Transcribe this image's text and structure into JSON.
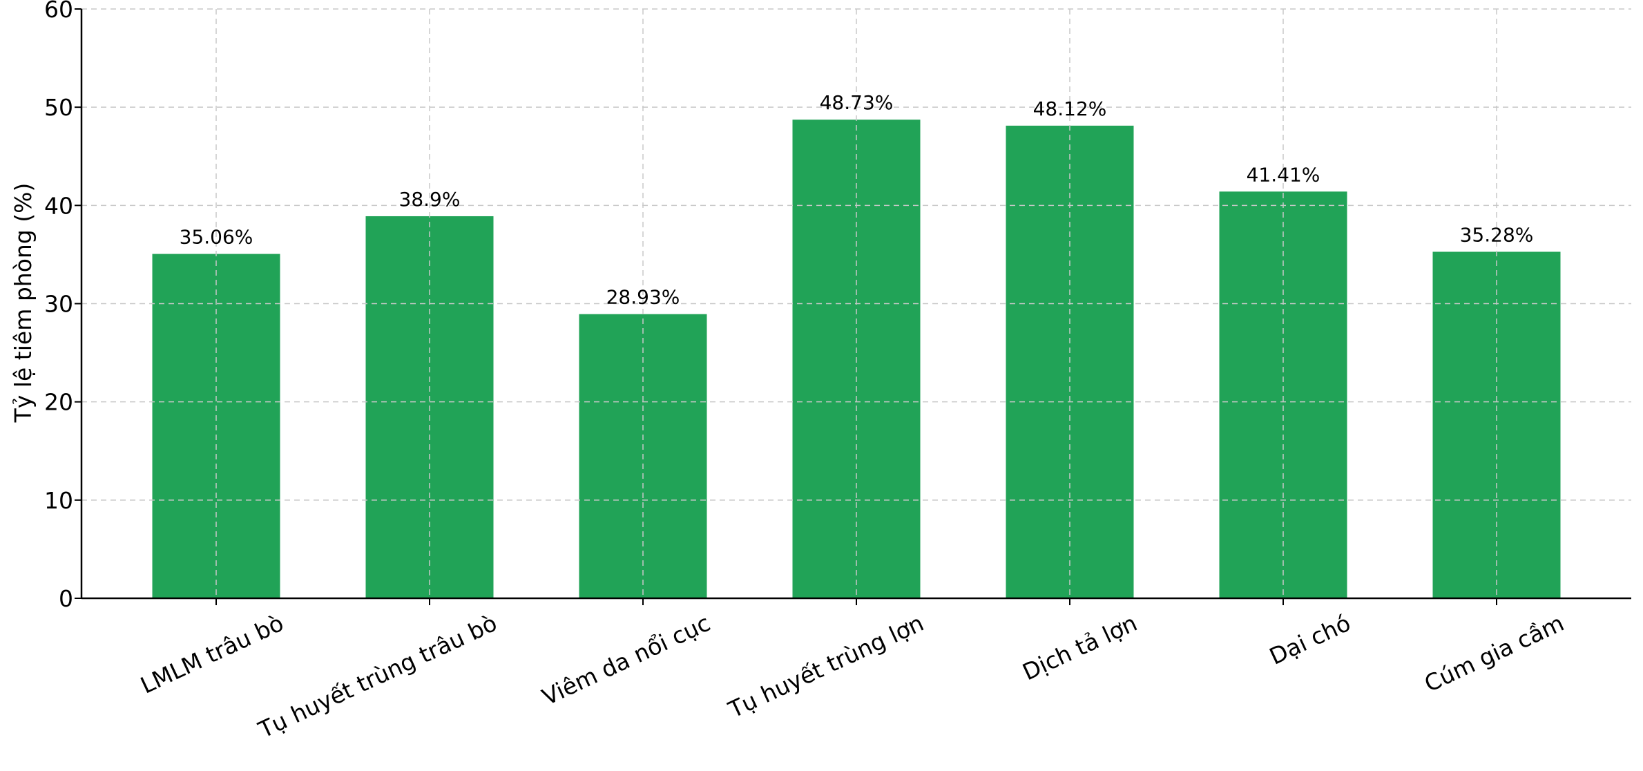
{
  "chart_data": {
    "type": "bar",
    "title": "",
    "xlabel": "",
    "ylabel": "Tỷ lệ tiêm phòng (%)",
    "categories": [
      "LMLM trâu bò",
      "Tụ huyết trùng trâu bò",
      "Viêm da nổi cục",
      "Tụ huyết trùng lợn",
      "Dịch tả lợn",
      "Dại chó",
      "Cúm gia cầm"
    ],
    "values": [
      35.06,
      38.9,
      28.93,
      48.73,
      48.12,
      41.41,
      35.28
    ],
    "value_labels": [
      "35.06%",
      "38.9%",
      "28.93%",
      "48.73%",
      "48.12%",
      "41.41%",
      "35.28%"
    ],
    "ylim": [
      0,
      60
    ],
    "yticks": [
      "0",
      "10",
      "20",
      "30",
      "40",
      "50",
      "60"
    ],
    "grid": true,
    "bar_color": "#21a357"
  }
}
